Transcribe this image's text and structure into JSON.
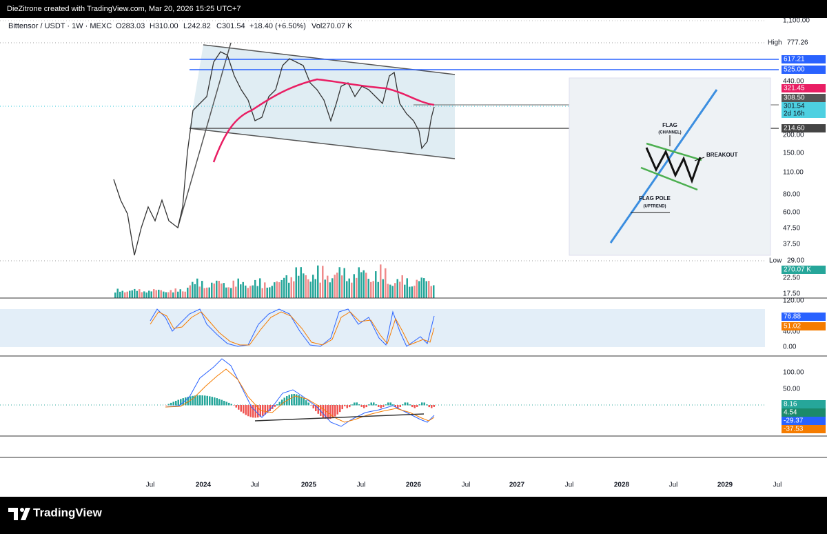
{
  "header": {
    "credit": "DieZitrone created with TradingView.com, Mar 20, 2026 15:25 UTC+7"
  },
  "legend": {
    "symbol": "Bittensor / USDT · 1W · MEXC",
    "open": "O283.03",
    "high": "H310.00",
    "low": "L242.82",
    "close": "C301.54",
    "change": "+18.40 (+6.50%)",
    "volume": "Vol270.07 K"
  },
  "price_scale": {
    "labels": [
      "1,100.00",
      "440.00",
      "200.00",
      "150.00",
      "110.00",
      "80.00",
      "60.00",
      "47.50",
      "37.50",
      "22.50",
      "17.50"
    ],
    "high": {
      "caption": "High",
      "value": "777.26"
    },
    "low": {
      "caption": "Low",
      "value": "29.00"
    },
    "tags": [
      {
        "text": "617.21",
        "color": "#2962ff"
      },
      {
        "text": "525.00",
        "color": "#2962ff"
      },
      {
        "text": "321.45",
        "color": "#e91e63"
      },
      {
        "text": "308.50",
        "color": "#555555"
      },
      {
        "text": "301.54",
        "color": "#4dd0e1",
        "note": "2d 16h"
      },
      {
        "text": "214.60",
        "color": "#444444"
      },
      {
        "text": "270.07 K",
        "color": "#26a69a"
      }
    ]
  },
  "stoch_scale": {
    "labels": [
      "120.00",
      "40.00",
      "0.00"
    ],
    "tags": [
      {
        "text": "76.88",
        "color": "#2962ff"
      },
      {
        "text": "51.02",
        "color": "#f57c00"
      }
    ]
  },
  "macd_scale": {
    "labels": [
      "100.00",
      "50.00"
    ],
    "tags": [
      {
        "text": "8.16",
        "color": "#26a69a"
      },
      {
        "text": "4.54",
        "color": "#1b8a6b"
      },
      {
        "text": "-29.37",
        "color": "#2962ff"
      },
      {
        "text": "-37.53",
        "color": "#f57c00"
      }
    ]
  },
  "time_axis": [
    "Jul",
    "2024",
    "Jul",
    "2025",
    "Jul",
    "2026",
    "Jul",
    "2027",
    "Jul",
    "2028",
    "Jul",
    "2029",
    "Jul"
  ],
  "inset": {
    "flag": "FLAG",
    "channel": "(CHANNEL)",
    "breakout": "BREAKOUT",
    "pole": "FLAG POLE",
    "uptrend": "(UPTREND)"
  },
  "footer": {
    "brand": "TradingView"
  }
}
